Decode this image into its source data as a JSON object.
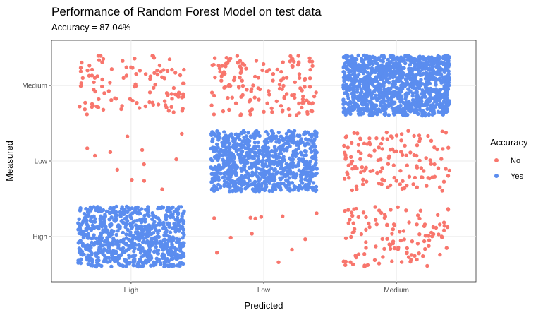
{
  "chart_data": {
    "type": "scatter",
    "title": "Performance of Random Forest Model on test data",
    "subtitle": "Accuracy = 87.04%",
    "xlabel": "Predicted",
    "ylabel": "Measured",
    "x_categories": [
      "High",
      "Low",
      "Medium"
    ],
    "y_categories": [
      "High",
      "Low",
      "Medium"
    ],
    "jitter": 0.4,
    "grid": true,
    "legend": {
      "title": "Accuracy",
      "position": "right",
      "entries": [
        {
          "label": "No",
          "color": "#F8766D"
        },
        {
          "label": "Yes",
          "color": "#5B8DEF"
        }
      ]
    },
    "approx_point_counts": [
      {
        "predicted": "High",
        "measured": "High",
        "accuracy": "Yes",
        "count": 800
      },
      {
        "predicted": "High",
        "measured": "Low",
        "accuracy": "No",
        "count": 12
      },
      {
        "predicted": "High",
        "measured": "Medium",
        "accuracy": "No",
        "count": 110
      },
      {
        "predicted": "Low",
        "measured": "High",
        "accuracy": "No",
        "count": 12
      },
      {
        "predicted": "Low",
        "measured": "Low",
        "accuracy": "Yes",
        "count": 850
      },
      {
        "predicted": "Low",
        "measured": "Medium",
        "accuracy": "No",
        "count": 150
      },
      {
        "predicted": "Medium",
        "measured": "High",
        "accuracy": "No",
        "count": 120
      },
      {
        "predicted": "Medium",
        "measured": "Low",
        "accuracy": "No",
        "count": 140
      },
      {
        "predicted": "Medium",
        "measured": "Medium",
        "accuracy": "Yes",
        "count": 1200
      }
    ]
  }
}
